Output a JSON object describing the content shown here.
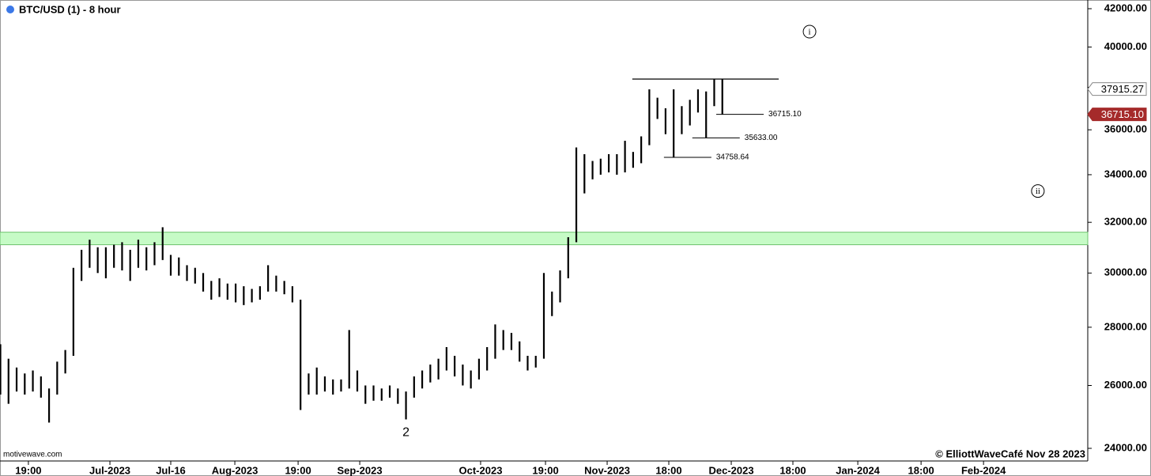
{
  "chart_data": {
    "type": "ohlc",
    "title": "BTC/USD (1) - 8 hour",
    "source": "motivewave.com",
    "credit": "© ElliottWaveCafé Nov 28 2023",
    "log_scale": true,
    "color": "#000000",
    "xlim": [
      -27.1,
      241.1
    ],
    "ylim": [
      23617,
      42467
    ],
    "yticks": [
      {
        "value": 24000,
        "label": "24000.00"
      },
      {
        "value": 26000,
        "label": "26000.00"
      },
      {
        "value": 28000,
        "label": "28000.00"
      },
      {
        "value": 30000,
        "label": "30000.00"
      },
      {
        "value": 32000,
        "label": "32000.00"
      },
      {
        "value": 34000,
        "label": "34000.00"
      },
      {
        "value": 36000,
        "label": "36000.00"
      },
      {
        "value": 38000,
        "label": "38000.00"
      },
      {
        "value": 40000,
        "label": "40000.00"
      },
      {
        "value": 42000,
        "label": "42000.00"
      }
    ],
    "xticks": [
      {
        "value": -20.1,
        "label": "19:00"
      },
      {
        "value": 0,
        "label": "Jul-2023"
      },
      {
        "value": 15,
        "label": "Jul-16"
      },
      {
        "value": 30.8,
        "label": "Aug-2023"
      },
      {
        "value": 46.4,
        "label": "19:00"
      },
      {
        "value": 61.6,
        "label": "Sep-2023"
      },
      {
        "value": 91.4,
        "label": "Oct-2023"
      },
      {
        "value": 107.4,
        "label": "19:00"
      },
      {
        "value": 122.6,
        "label": "Nov-2023"
      },
      {
        "value": 137.8,
        "label": "18:00"
      },
      {
        "value": 153.2,
        "label": "Dec-2023"
      },
      {
        "value": 168.4,
        "label": "18:00"
      },
      {
        "value": 184.4,
        "label": "Jan-2024"
      },
      {
        "value": 200,
        "label": "18:00"
      },
      {
        "value": 215.4,
        "label": "Feb-2024"
      }
    ],
    "bars": {
      "x": [
        -27,
        -25,
        -23,
        -21,
        -19,
        -17,
        -15,
        -13,
        -11,
        -9,
        -7,
        -5,
        -3,
        -1,
        1,
        3,
        5,
        7,
        9,
        11,
        13,
        15,
        17,
        19,
        21,
        23,
        25,
        27,
        29,
        31,
        33,
        35,
        37,
        39,
        41,
        43,
        45,
        47,
        49,
        51,
        53,
        55,
        57,
        59,
        61,
        63,
        65,
        67,
        69,
        71,
        73,
        75,
        77,
        79,
        81,
        83,
        85,
        87,
        89,
        91,
        93,
        95,
        97,
        99,
        101,
        103,
        105,
        107,
        109,
        111,
        113,
        115,
        117,
        119,
        121,
        123,
        125,
        127,
        129,
        131,
        133,
        135,
        137,
        139,
        141,
        143,
        145,
        147,
        149,
        151
      ],
      "high": [
        27400,
        26900,
        26600,
        26400,
        26500,
        26300,
        25900,
        26800,
        27200,
        30200,
        30900,
        31300,
        31000,
        31000,
        31100,
        31200,
        30900,
        31300,
        31000,
        31200,
        31800,
        30700,
        30600,
        30300,
        30200,
        30000,
        29700,
        29800,
        29600,
        29600,
        29500,
        29400,
        29500,
        30300,
        29900,
        29700,
        29500,
        29000,
        26400,
        26600,
        26300,
        26200,
        26200,
        27900,
        26500,
        26000,
        26000,
        25900,
        26000,
        25900,
        25800,
        26300,
        26500,
        26700,
        26900,
        27300,
        27000,
        26700,
        26500,
        26900,
        27300,
        28100,
        27900,
        27800,
        27500,
        27000,
        27000,
        30000,
        29300,
        30100,
        31400,
        35200,
        34900,
        34600,
        34700,
        34900,
        34900,
        35500,
        35000,
        35700,
        37900,
        37500,
        37000,
        37900,
        37100,
        37400,
        37900,
        37800,
        38400,
        38400
      ],
      "low": [
        25700,
        25400,
        25800,
        25700,
        25800,
        25600,
        24800,
        25700,
        26400,
        27000,
        29700,
        30200,
        30000,
        29800,
        30200,
        30100,
        29700,
        30200,
        30100,
        30300,
        30500,
        29900,
        29900,
        29700,
        29600,
        29300,
        29000,
        29100,
        29000,
        28900,
        28800,
        28900,
        29000,
        29300,
        29300,
        29200,
        28900,
        25200,
        25700,
        25700,
        25800,
        25700,
        25800,
        25900,
        25800,
        25400,
        25500,
        25500,
        25600,
        25400,
        24900,
        25600,
        25900,
        26100,
        26200,
        26500,
        26300,
        26000,
        25900,
        26200,
        26500,
        26900,
        27200,
        27200,
        26800,
        26500,
        26600,
        26900,
        28400,
        28900,
        29800,
        31200,
        33200,
        33800,
        34000,
        34100,
        34000,
        34100,
        34300,
        34500,
        35300,
        36500,
        35800,
        34758.64,
        35800,
        36200,
        36800,
        35633,
        37100,
        36715.1
      ]
    },
    "zone": [
      31100,
      31600
    ],
    "resistance": {
      "value": 38400,
      "x": [
        128.8,
        164.9
      ]
    },
    "annotations": [
      {
        "label": "36715.10",
        "value": 36715.1,
        "x": 149.5
      },
      {
        "label": "35633.00",
        "value": 35633,
        "x": 143.6
      },
      {
        "label": "34758.64",
        "value": 34758.64,
        "x": 136.6
      }
    ],
    "wave_labels": [
      {
        "label": "2",
        "x": 73,
        "value": 24500,
        "circled": false
      },
      {
        "label": "i",
        "x": 172.5,
        "value": 40790,
        "circled": true
      },
      {
        "label": "ii",
        "x": 228.8,
        "value": 33300,
        "circled": true
      }
    ],
    "price_tags": [
      {
        "value": 37915.27,
        "label": "37915.27",
        "color": "#ffffff",
        "text_color": "#000000"
      },
      {
        "value": 36715.1,
        "label": "36715.10",
        "color": "#a52a2a",
        "text_color": "#ffffff"
      }
    ]
  }
}
